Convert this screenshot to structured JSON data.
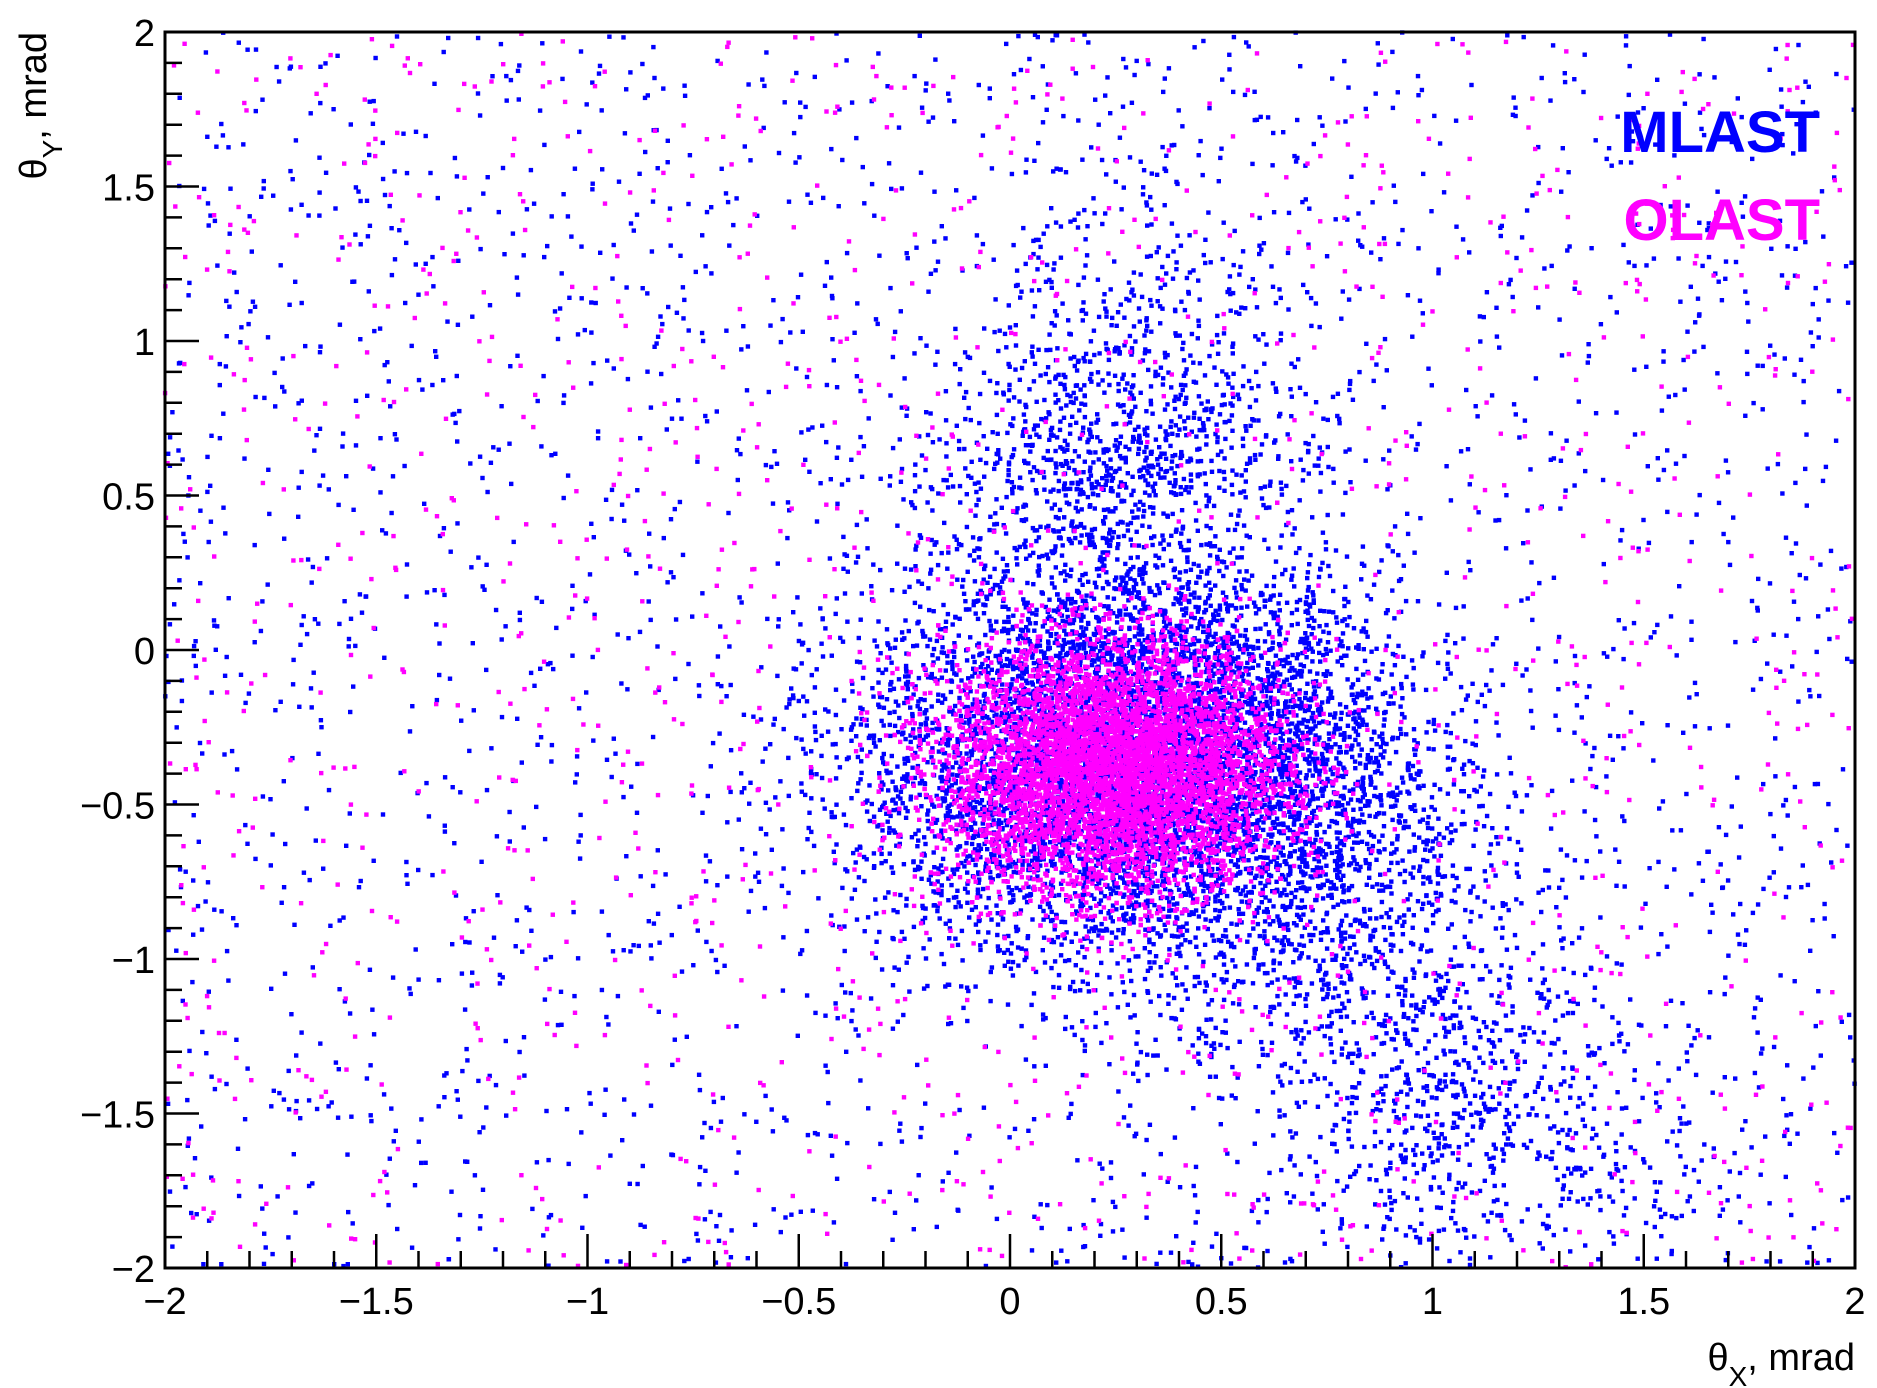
{
  "chart_data": {
    "type": "scatter",
    "title": "",
    "xlabel": {
      "main": "θ",
      "sub": "X",
      "rest": ", mrad"
    },
    "ylabel": {
      "main": "θ",
      "sub": "Y",
      "rest": ", mrad"
    },
    "xlim": [
      -2,
      2
    ],
    "ylim": [
      -2,
      2
    ],
    "x_ticks": [
      -2,
      -1.5,
      -1,
      -0.5,
      0,
      0.5,
      1,
      1.5,
      2
    ],
    "x_tick_labels": [
      "−2",
      "−1.5",
      "−1",
      "−0.5",
      "0",
      "0.5",
      "1",
      "1.5",
      "2"
    ],
    "y_ticks": [
      -2,
      -1.5,
      -1,
      -0.5,
      0,
      0.5,
      1,
      1.5,
      2
    ],
    "y_tick_labels": [
      "−2",
      "−1.5",
      "−1",
      "−0.5",
      "0",
      "0.5",
      "1",
      "1.5",
      "2"
    ],
    "grid": false,
    "legend_position": "top-right",
    "series": [
      {
        "name": "MLAST",
        "color": "#0000ff",
        "distribution": {
          "core": {
            "center": [
              0.28,
              -0.38
            ],
            "sigma": [
              0.32,
              0.3
            ],
            "count": 5200
          },
          "diagonal_tail": {
            "from": [
              0.1,
              0.6
            ],
            "to": [
              1.2,
              -1.8
            ],
            "width": 0.35,
            "count": 2600
          },
          "upper_plume": {
            "center": [
              0.3,
              0.8
            ],
            "sigma": [
              0.22,
              0.55
            ],
            "count": 700
          },
          "uniform_background": {
            "count": 2600
          }
        }
      },
      {
        "name": "OLAST",
        "color": "#ff00ff",
        "distribution": {
          "core": {
            "center": [
              0.25,
              -0.38
            ],
            "sigma": [
              0.2,
              0.2
            ],
            "count": 6500
          },
          "uniform_background": {
            "count": 1300
          }
        }
      }
    ]
  }
}
